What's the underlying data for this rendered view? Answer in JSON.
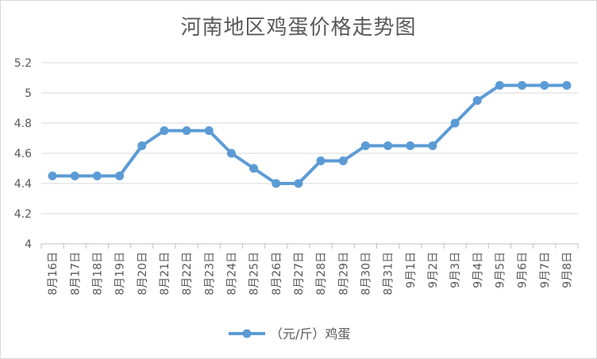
{
  "chart_data": {
    "type": "line",
    "title": "河南地区鸡蛋价格走势图",
    "xlabel": "",
    "ylabel": "",
    "categories": [
      "8月16日",
      "8月17日",
      "8月18日",
      "8月19日",
      "8月20日",
      "8月21日",
      "8月22日",
      "8月23日",
      "8月24日",
      "8月25日",
      "8月26日",
      "8月27日",
      "8月28日",
      "8月29日",
      "8月30日",
      "8月31日",
      "9月1日",
      "9月2日",
      "9月3日",
      "9月4日",
      "9月5日",
      "9月6日",
      "9月7日",
      "9月8日"
    ],
    "series": [
      {
        "name": "（元/斤）鸡蛋",
        "color": "#5b9bd5",
        "values": [
          4.45,
          4.45,
          4.45,
          4.45,
          4.65,
          4.75,
          4.75,
          4.75,
          4.6,
          4.5,
          4.4,
          4.4,
          4.55,
          4.55,
          4.65,
          4.65,
          4.65,
          4.65,
          4.8,
          4.95,
          5.05,
          5.05,
          5.05,
          5.05
        ]
      }
    ],
    "ylim": [
      4,
      5.2
    ],
    "yticks": [
      "4",
      "4.2",
      "4.4",
      "4.6",
      "4.8",
      "5",
      "5.2"
    ],
    "grid": true,
    "legend": "bottom"
  }
}
